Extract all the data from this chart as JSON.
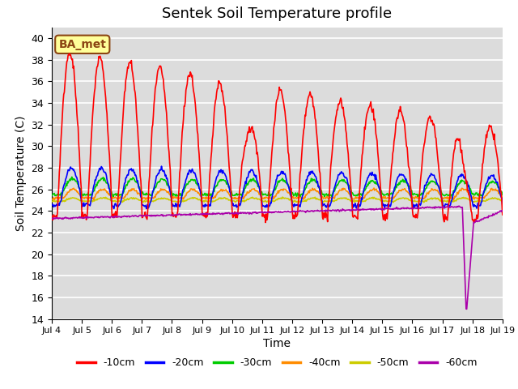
{
  "title": "Sentek Soil Temperature profile",
  "xlabel": "Time",
  "ylabel": "Soil Temperature (C)",
  "ylim": [
    14,
    41
  ],
  "yticks": [
    14,
    16,
    18,
    20,
    22,
    24,
    26,
    28,
    30,
    32,
    34,
    36,
    38,
    40
  ],
  "annotation_text": "BA_met",
  "annotation_color": "#8B4513",
  "annotation_bg": "#FFFF99",
  "plot_bg": "#DCDCDC",
  "grid_color": "white",
  "legend_labels": [
    "-10cm",
    "-20cm",
    "-30cm",
    "-40cm",
    "-50cm",
    "-60cm"
  ],
  "line_colors": [
    "#FF0000",
    "#0000FF",
    "#00CC00",
    "#FF8C00",
    "#CCCC00",
    "#AA00AA"
  ],
  "xtick_labels": [
    "Jul 4",
    "Jul 5",
    "Jul 6",
    "Jul 7",
    "Jul 8",
    "Jul 9",
    "Jul 10",
    "Jul 11",
    "Jul 12",
    "Jul 13",
    "Jul 14",
    "Jul 15",
    "Jul 16",
    "Jul 17",
    "Jul 18",
    "Jul 19"
  ],
  "num_days": 15,
  "pts_per_day": 48
}
